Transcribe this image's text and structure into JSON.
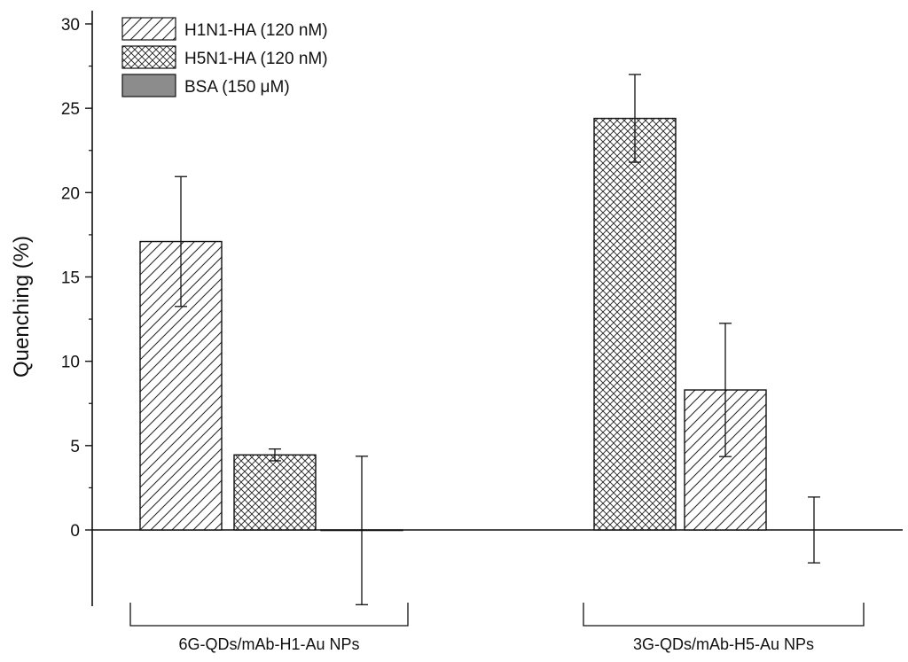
{
  "chart_data": {
    "type": "bar",
    "ylabel": "Quenching (%)",
    "ylim": [
      -4.5,
      30
    ],
    "yticks": [
      0,
      5,
      10,
      15,
      20,
      25,
      30
    ],
    "zero_line": true,
    "legend_position": "top-left",
    "groups": [
      {
        "label": "6G-QDs/mAb-H1-Au NPs",
        "bars": [
          {
            "series": "H1N1-HA (120 nM)",
            "value": 17.1,
            "error": 3.85
          },
          {
            "series": "H5N1-HA (120 nM)",
            "value": 4.45,
            "error": 0.35
          },
          {
            "series": "BSA (150 μM)",
            "value": -0.03,
            "error": 4.4
          }
        ]
      },
      {
        "label": "3G-QDs/mAb-H5-Au NPs",
        "bars": [
          {
            "series": "H5N1-HA (120 nM)",
            "value": 24.4,
            "error": 2.6
          },
          {
            "series": "H1N1-HA (120 nM)",
            "value": 8.3,
            "error": 3.95
          },
          {
            "series": "BSA (150 μM)",
            "value": 0.0,
            "error": 1.95
          }
        ]
      }
    ],
    "legend": [
      {
        "name": "H1N1-HA (120 nM)",
        "pattern": "diagonal-hatch"
      },
      {
        "name": "H5N1-HA (120 nM)",
        "pattern": "cross-hatch"
      },
      {
        "name": "BSA (150 μM)",
        "pattern": "solid-gray"
      }
    ],
    "colors": {
      "bar_edge": "#111111",
      "bsa_fill": "#8c8c8c",
      "hatch": "#222222"
    }
  }
}
